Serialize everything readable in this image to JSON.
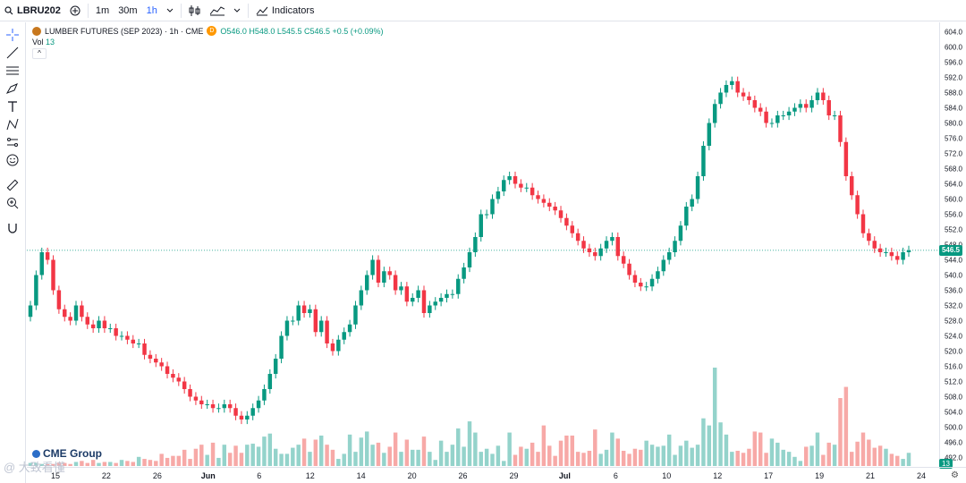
{
  "toolbar": {
    "symbol": "LBRU202",
    "add_icon": "plus-circle-icon",
    "intervals": [
      "1m",
      "30m",
      "1h"
    ],
    "active_interval": "1h",
    "indicators_label": "Indicators"
  },
  "legend": {
    "title": "LUMBER FUTURES (SEP 2023) · 1h · CME",
    "badge": "D",
    "ohlc": "O546.0 H548.0 L545.5 C546.5 +0.5 (+0.09%)",
    "vol_label": "Vol",
    "vol_value": "13",
    "collapse": "^"
  },
  "price_axis": {
    "labels": [
      "604.0",
      "600.0",
      "596.0",
      "592.0",
      "588.0",
      "584.0",
      "580.0",
      "576.0",
      "572.0",
      "568.0",
      "564.0",
      "560.0",
      "556.0",
      "552.0",
      "548.0",
      "544.0",
      "540.0",
      "536.0",
      "532.0",
      "528.0",
      "524.0",
      "520.0",
      "516.0",
      "512.0",
      "508.0",
      "504.0",
      "500.0",
      "496.0",
      "492.0"
    ],
    "current_price": "546.5",
    "current_volume": "13"
  },
  "time_axis": {
    "labels": [
      "15",
      "22",
      "26",
      "Jun",
      "6",
      "12",
      "14",
      "20",
      "26",
      "29",
      "Jul",
      "6",
      "10",
      "12",
      "17",
      "19",
      "21",
      "24"
    ]
  },
  "branding": {
    "logo_text": "CME Group",
    "watermark": "@ 大致看懂"
  },
  "colors": {
    "up": "#089981",
    "down": "#f23645",
    "vol_up": "#94d3cb",
    "vol_down": "#f7a9a7",
    "price_line": "#089981"
  },
  "chart_data": {
    "type": "candlestick",
    "title": "LUMBER FUTURES (SEP 2023) · 1h · CME",
    "ylim": [
      490,
      606
    ],
    "grid": false,
    "x_ticks": [
      "15",
      "22",
      "26",
      "Jun",
      "6",
      "12",
      "14",
      "20",
      "26",
      "29",
      "Jul",
      "6",
      "10",
      "12",
      "17",
      "19",
      "21",
      "24"
    ],
    "close": [
      532,
      540,
      546,
      544,
      536,
      531,
      529,
      528,
      532,
      529,
      527,
      526,
      528,
      526,
      526,
      524,
      524,
      523,
      522,
      522,
      519,
      518,
      517,
      516,
      514,
      513,
      512,
      510,
      508,
      507,
      506,
      506,
      505,
      505,
      506,
      505,
      503,
      502,
      503,
      505,
      507,
      510,
      514,
      518,
      524,
      528,
      528,
      532,
      530,
      531,
      525,
      528,
      522,
      520,
      523,
      525,
      527,
      532,
      536,
      540,
      544,
      538,
      541,
      540,
      536,
      537,
      533,
      534,
      536,
      530,
      532,
      533,
      534,
      535,
      535,
      539,
      542,
      546,
      550,
      556,
      556,
      560,
      562,
      565,
      566,
      564,
      563,
      563,
      561,
      560,
      559,
      558,
      557,
      555,
      553,
      551,
      549,
      547,
      546,
      545,
      547,
      549,
      550,
      545,
      543,
      540,
      538,
      537,
      537,
      539,
      541,
      544,
      546,
      549,
      553,
      558,
      560,
      566,
      574,
      580,
      585,
      588,
      590,
      591,
      588,
      587,
      586,
      584,
      583,
      580,
      580,
      582,
      582,
      583,
      584,
      585,
      584,
      586,
      588,
      586,
      582,
      582,
      575,
      566,
      561,
      556,
      551,
      549,
      547,
      546,
      546,
      545,
      544,
      546,
      546.5
    ],
    "volume": [
      3,
      3,
      2,
      2,
      2,
      3,
      3,
      2,
      4,
      5,
      3,
      6,
      3,
      4,
      4,
      3,
      6,
      5,
      4,
      9,
      7,
      6,
      5,
      12,
      8,
      10,
      10,
      16,
      7,
      17,
      21,
      11,
      23,
      8,
      21,
      13,
      20,
      13,
      21,
      22,
      19,
      29,
      32,
      17,
      12,
      12,
      18,
      21,
      27,
      14,
      26,
      30,
      21,
      16,
      7,
      12,
      31,
      14,
      28,
      34,
      21,
      23,
      13,
      19,
      33,
      14,
      26,
      16,
      16,
      29,
      14,
      6,
      25,
      14,
      21,
      37,
      19,
      44,
      33,
      14,
      17,
      12,
      20,
      5,
      33,
      11,
      19,
      17,
      23,
      14,
      40,
      20,
      10,
      25,
      30,
      30,
      14,
      13,
      15,
      36,
      12,
      16,
      33,
      27,
      15,
      12,
      17,
      16,
      25,
      21,
      19,
      20,
      31,
      11,
      20,
      25,
      18,
      21,
      47,
      40,
      97,
      43,
      31,
      14,
      15,
      13,
      17,
      34,
      33,
      13,
      27,
      23,
      16,
      14,
      9,
      5,
      19,
      20,
      33,
      11,
      23,
      21,
      67,
      78,
      14,
      24,
      33,
      26,
      18,
      20,
      17,
      12,
      10,
      7,
      13
    ]
  }
}
